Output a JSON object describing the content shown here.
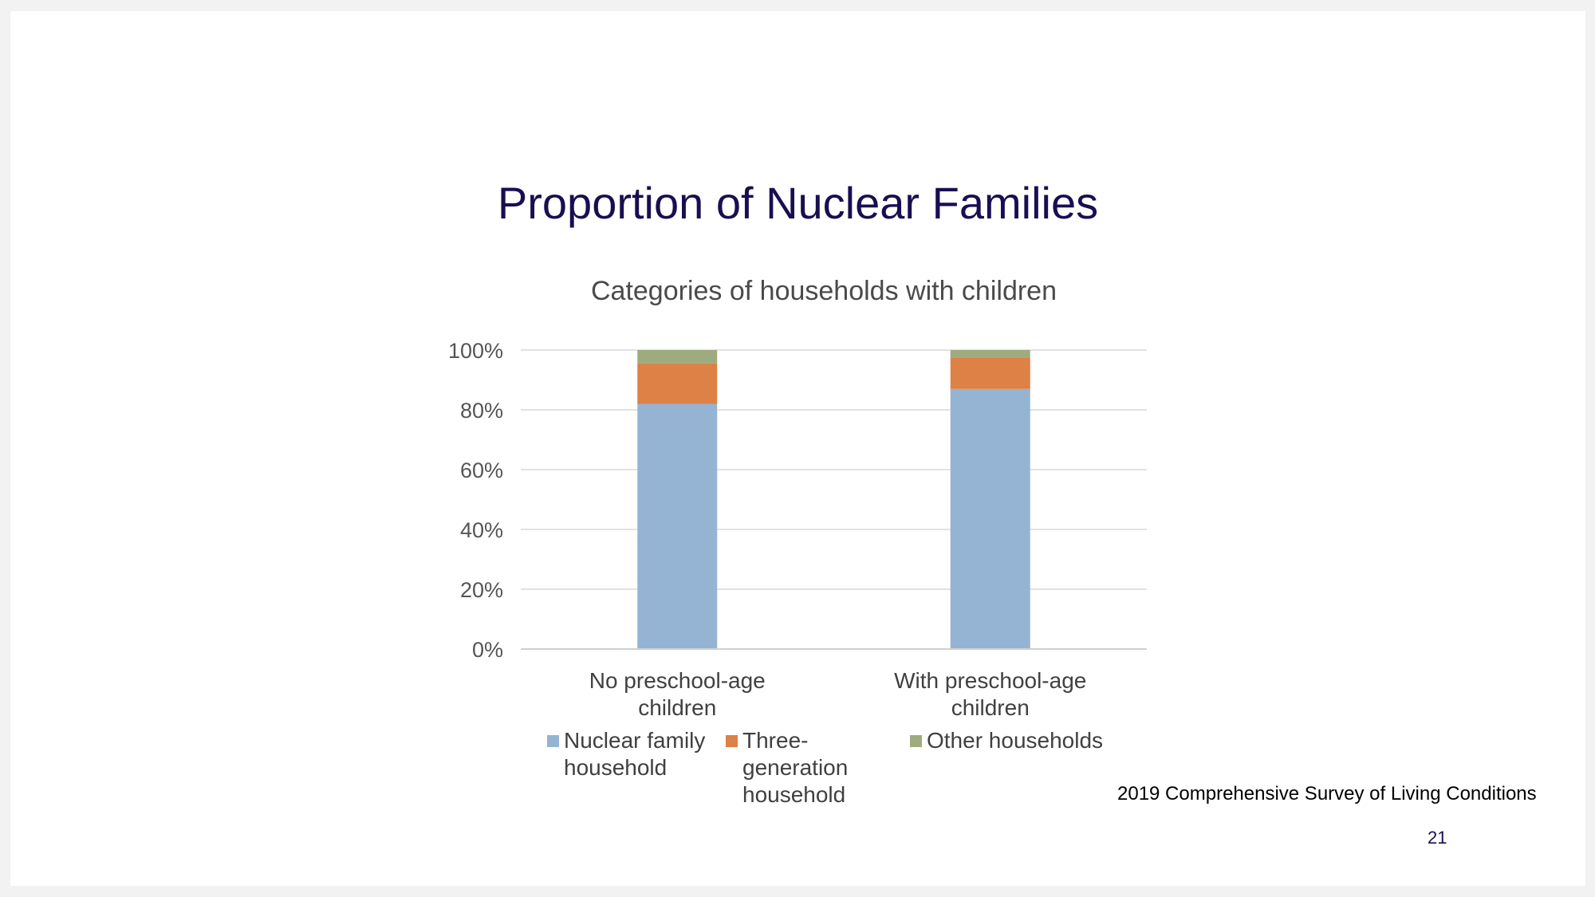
{
  "slide": {
    "title": "Proportion of Nuclear Families",
    "source": "2019 Comprehensive Survey of Living Conditions",
    "page_number": "21"
  },
  "chart_data": {
    "type": "bar",
    "stacked": true,
    "title": "Categories of households with children",
    "categories": [
      [
        "No preschool-age",
        "children"
      ],
      [
        "With preschool-age",
        "children"
      ]
    ],
    "series": [
      {
        "name": [
          "Nuclear family",
          "household"
        ],
        "values": [
          82,
          87
        ],
        "color": "#95b3d2"
      },
      {
        "name": [
          "Three-",
          "generation",
          "household"
        ],
        "values": [
          13.5,
          10.5
        ],
        "color": "#dd8146"
      },
      {
        "name": [
          "Other households"
        ],
        "values": [
          4.5,
          2.5
        ],
        "color": "#9eab7e"
      }
    ],
    "ylim": [
      0,
      100
    ],
    "yticks": [
      "0%",
      "20%",
      "40%",
      "60%",
      "80%",
      "100%"
    ],
    "grid": true,
    "legend_position": "bottom"
  }
}
